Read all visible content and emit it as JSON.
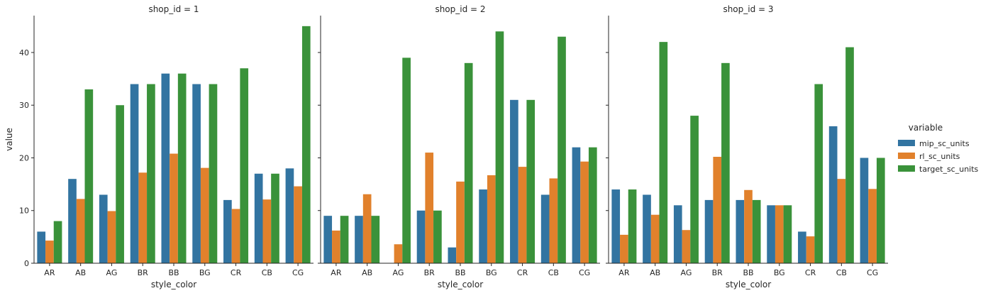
{
  "chart_data": {
    "type": "bar",
    "xlabel": "style_color",
    "ylabel": "value",
    "ylim": [
      0,
      47
    ],
    "yticks": [
      0,
      10,
      20,
      30,
      40
    ],
    "categories": [
      "AR",
      "AB",
      "AG",
      "BR",
      "BB",
      "BG",
      "CR",
      "CB",
      "CG"
    ],
    "legend": {
      "title": "variable",
      "placement": "right"
    },
    "colors": {
      "mip_sc_units": "#3274a1",
      "rl_sc_units": "#e1812c",
      "target_sc_units": "#3a923a"
    },
    "panels": [
      {
        "title": "shop_id = 1",
        "series": [
          {
            "name": "mip_sc_units",
            "values": [
              6,
              16,
              13,
              34,
              36,
              34,
              12,
              17,
              18
            ]
          },
          {
            "name": "rl_sc_units",
            "values": [
              4.3,
              12.2,
              9.9,
              17.2,
              20.8,
              18.1,
              10.3,
              12.1,
              14.6
            ]
          },
          {
            "name": "target_sc_units",
            "values": [
              8,
              33,
              30,
              34,
              36,
              34,
              37,
              17,
              45
            ]
          }
        ]
      },
      {
        "title": "shop_id = 2",
        "series": [
          {
            "name": "mip_sc_units",
            "values": [
              9,
              9,
              0,
              10,
              3,
              14,
              31,
              13,
              22
            ]
          },
          {
            "name": "rl_sc_units",
            "values": [
              6.2,
              13.1,
              3.6,
              21.0,
              15.5,
              16.7,
              18.3,
              16.1,
              19.3
            ]
          },
          {
            "name": "target_sc_units",
            "values": [
              9,
              9,
              39,
              10,
              38,
              44,
              31,
              43,
              22
            ]
          }
        ]
      },
      {
        "title": "shop_id = 3",
        "series": [
          {
            "name": "mip_sc_units",
            "values": [
              14,
              13,
              11,
              12,
              12,
              11,
              6,
              26,
              20
            ]
          },
          {
            "name": "rl_sc_units",
            "values": [
              5.4,
              9.2,
              6.3,
              20.2,
              13.9,
              11,
              5.1,
              16,
              14.1
            ]
          },
          {
            "name": "target_sc_units",
            "values": [
              14,
              42,
              28,
              38,
              12,
              11,
              34,
              41,
              20
            ]
          }
        ]
      }
    ]
  }
}
